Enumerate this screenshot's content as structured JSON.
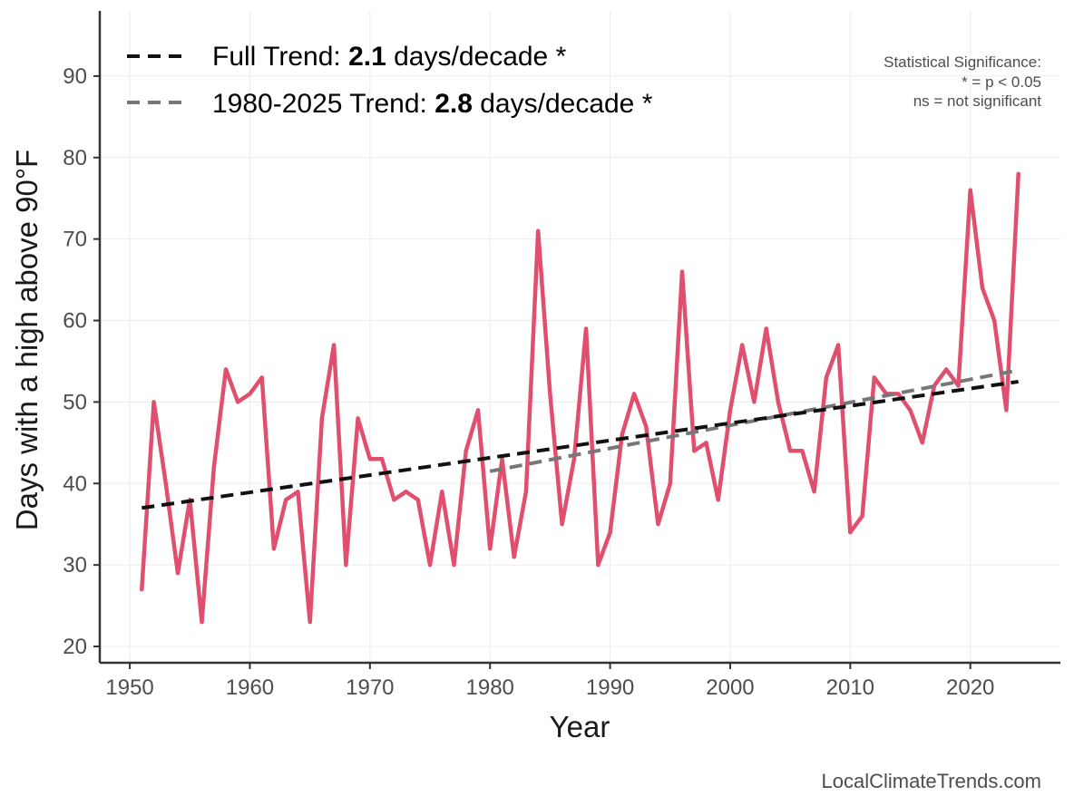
{
  "chart_data": {
    "type": "line",
    "xlabel": "Year",
    "ylabel": "Days with a high above 90°F",
    "xlim": [
      1947.5,
      2027.5
    ],
    "ylim": [
      18,
      98
    ],
    "x_ticks": [
      1950,
      1960,
      1970,
      1980,
      1990,
      2000,
      2010,
      2020
    ],
    "y_ticks": [
      20,
      30,
      40,
      50,
      60,
      70,
      80,
      90
    ],
    "grid": true,
    "colors": {
      "data_line": "#e0506e",
      "full_trend": "#111111",
      "recent_trend": "#777777",
      "grid": "#ececec",
      "axis": "#333333"
    },
    "series": [
      {
        "name": "Days above 90°F",
        "x": [
          1951,
          1952,
          1953,
          1954,
          1955,
          1956,
          1957,
          1958,
          1959,
          1960,
          1961,
          1962,
          1963,
          1964,
          1965,
          1966,
          1967,
          1968,
          1969,
          1970,
          1971,
          1972,
          1973,
          1974,
          1975,
          1976,
          1977,
          1978,
          1979,
          1980,
          1981,
          1982,
          1983,
          1984,
          1985,
          1986,
          1987,
          1988,
          1989,
          1990,
          1991,
          1992,
          1993,
          1994,
          1995,
          1996,
          1997,
          1998,
          1999,
          2000,
          2001,
          2002,
          2003,
          2004,
          2005,
          2006,
          2007,
          2008,
          2009,
          2010,
          2011,
          2012,
          2013,
          2014,
          2015,
          2016,
          2017,
          2018,
          2019,
          2020,
          2021,
          2022,
          2023,
          2024
        ],
        "values": [
          27,
          50,
          40,
          29,
          38,
          23,
          42,
          54,
          50,
          51,
          53,
          32,
          38,
          39,
          23,
          48,
          57,
          30,
          48,
          43,
          43,
          38,
          39,
          38,
          30,
          39,
          30,
          44,
          49,
          32,
          43,
          31,
          39,
          71,
          51,
          35,
          43,
          59,
          30,
          34,
          46,
          51,
          47,
          35,
          40,
          66,
          44,
          45,
          38,
          49,
          57,
          50,
          59,
          50,
          44,
          44,
          39,
          53,
          57,
          34,
          36,
          53,
          51,
          51,
          49,
          45,
          52,
          54,
          52,
          76,
          64,
          60,
          49,
          78
        ]
      }
    ],
    "trends": [
      {
        "name": "Full Trend",
        "x": [
          1951,
          2024
        ],
        "values": [
          37.0,
          52.5
        ]
      },
      {
        "name": "1980-2025 Trend",
        "x": [
          1980,
          2024
        ],
        "values": [
          41.5,
          53.9
        ]
      }
    ],
    "legend": {
      "position": "top-left",
      "entries": [
        {
          "prefix": "Full Trend: ",
          "value": "2.1",
          "suffix": " days/decade *"
        },
        {
          "prefix": "1980-2025 Trend: ",
          "value": "2.8",
          "suffix": " days/decade *"
        }
      ]
    },
    "significance_note": [
      "Statistical Significance:",
      "* = p < 0.05",
      "ns = not significant"
    ]
  },
  "credit": "LocalClimateTrends.com"
}
